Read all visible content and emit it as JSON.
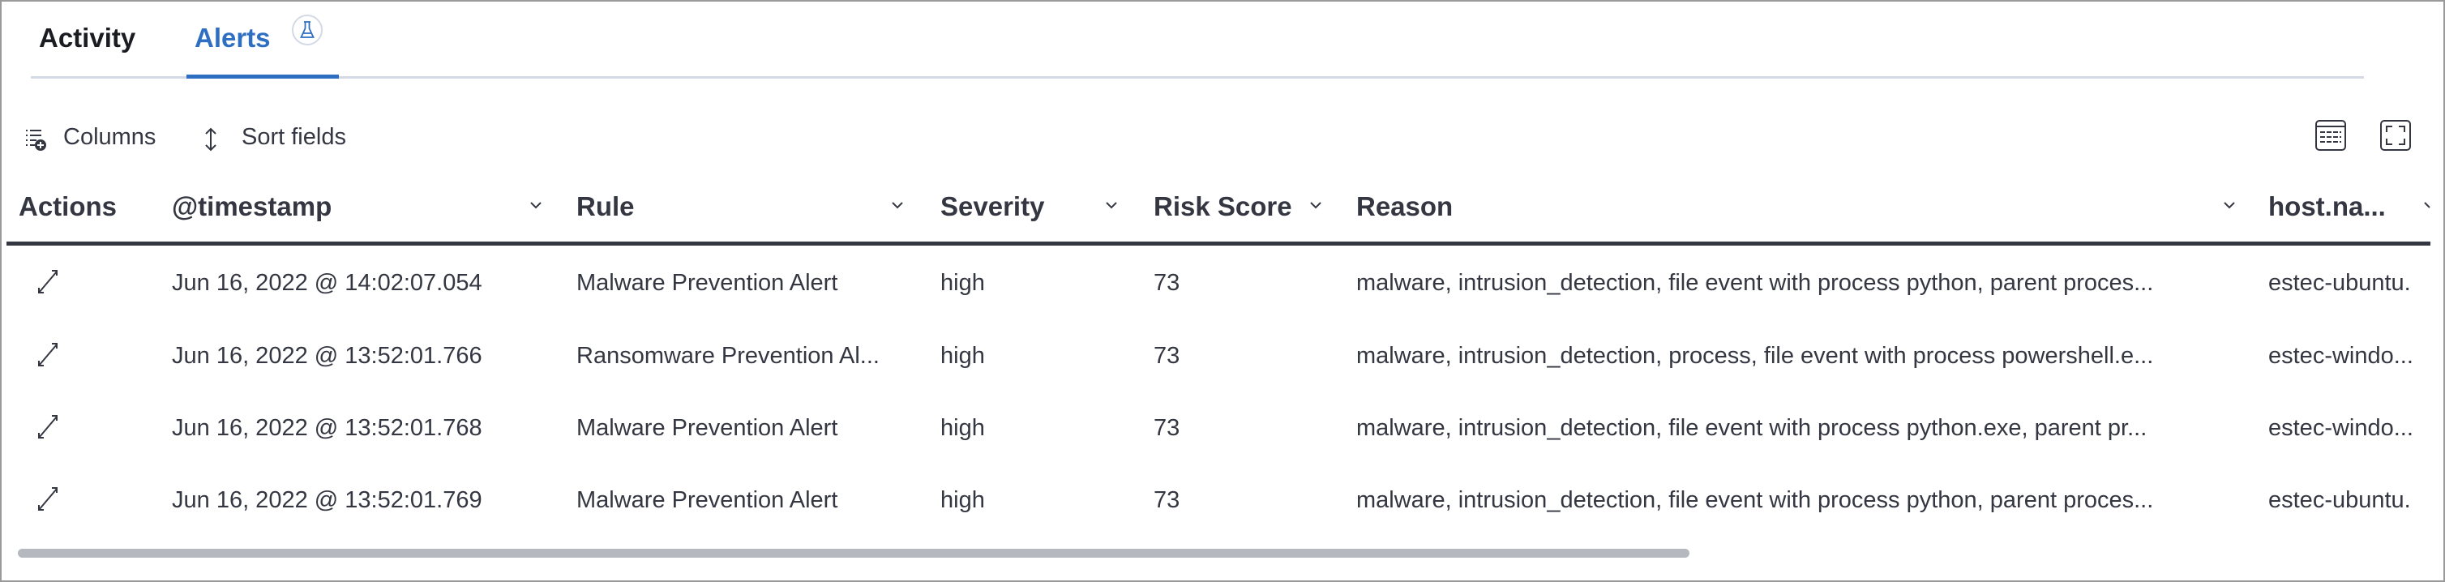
{
  "tabs": [
    {
      "label": "Activity",
      "active": false
    },
    {
      "label": "Alerts",
      "active": true,
      "badge_icon": "beaker-icon"
    }
  ],
  "toolbar": {
    "columns_label": "Columns",
    "sort_label": "Sort fields",
    "right_icons": [
      "row-density-icon",
      "fullscreen-icon"
    ]
  },
  "colors": {
    "accent": "#2f6fc2",
    "text": "#343741",
    "scrollbar": "#b5b8bf"
  },
  "table": {
    "columns": [
      "Actions",
      "@timestamp",
      "Rule",
      "Severity",
      "Risk Score",
      "Reason",
      "host.na..."
    ],
    "rows": [
      {
        "timestamp": "Jun 16, 2022 @ 14:02:07.054",
        "rule": "Malware Prevention Alert",
        "severity": "high",
        "risk": "73",
        "reason": "malware, intrusion_detection, file event with process python, parent proces...",
        "host": "estec-ubuntu."
      },
      {
        "timestamp": "Jun 16, 2022 @ 13:52:01.766",
        "rule": "Ransomware Prevention Al...",
        "severity": "high",
        "risk": "73",
        "reason": "malware, intrusion_detection, process, file event with process powershell.e...",
        "host": "estec-windo..."
      },
      {
        "timestamp": "Jun 16, 2022 @ 13:52:01.768",
        "rule": "Malware Prevention Alert",
        "severity": "high",
        "risk": "73",
        "reason": "malware, intrusion_detection, file event with process python.exe, parent pr...",
        "host": "estec-windo..."
      },
      {
        "timestamp": "Jun 16, 2022 @ 13:52:01.769",
        "rule": "Malware Prevention Alert",
        "severity": "high",
        "risk": "73",
        "reason": "malware, intrusion_detection, file event with process python, parent proces...",
        "host": "estec-ubuntu."
      }
    ]
  }
}
